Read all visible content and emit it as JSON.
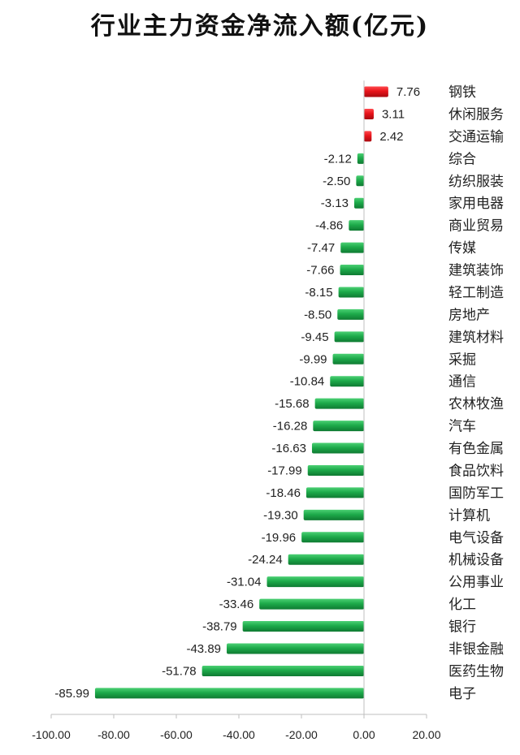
{
  "chart_data": {
    "type": "bar",
    "orientation": "horizontal",
    "title": "行业主力资金净流入额(亿元)",
    "xlabel": "",
    "ylabel": "",
    "xlim": [
      -100,
      20
    ],
    "xticks": [
      -100,
      -80,
      -60,
      -40,
      -20,
      0,
      20
    ],
    "xtick_labels": [
      "-100.00",
      "-80.00",
      "-60.00",
      "-40.00",
      "-20.00",
      "0.00",
      "20.00"
    ],
    "grid": false,
    "legend": "none",
    "categories": [
      "钢铁",
      "休闲服务",
      "交通运输",
      "综合",
      "纺织服装",
      "家用电器",
      "商业贸易",
      "传媒",
      "建筑装饰",
      "轻工制造",
      "房地产",
      "建筑材料",
      "采掘",
      "通信",
      "农林牧渔",
      "汽车",
      "有色金属",
      "食品饮料",
      "国防军工",
      "计算机",
      "电气设备",
      "机械设备",
      "公用事业",
      "化工",
      "银行",
      "非银金融",
      "医药生物",
      "电子"
    ],
    "values": [
      7.76,
      3.11,
      2.42,
      -2.12,
      -2.5,
      -3.13,
      -4.86,
      -7.47,
      -7.66,
      -8.15,
      -8.5,
      -9.45,
      -9.99,
      -10.84,
      -15.68,
      -16.28,
      -16.63,
      -17.99,
      -18.46,
      -19.3,
      -19.96,
      -24.24,
      -31.04,
      -33.46,
      -38.79,
      -43.89,
      -51.78,
      -85.99
    ],
    "value_labels": [
      "7.76",
      "3.11",
      "2.42",
      "-2.12",
      "-2.50",
      "-3.13",
      "-4.86",
      "-7.47",
      "-7.66",
      "-8.15",
      "-8.50",
      "-9.45",
      "-9.99",
      "-10.84",
      "-15.68",
      "-16.28",
      "-16.63",
      "-17.99",
      "-18.46",
      "-19.30",
      "-19.96",
      "-24.24",
      "-31.04",
      "-33.46",
      "-38.79",
      "-43.89",
      "-51.78",
      "-85.99"
    ],
    "colors": {
      "positive": "#e8141b",
      "negative": "#1daa4a",
      "axis": "#bfbfbf"
    }
  }
}
